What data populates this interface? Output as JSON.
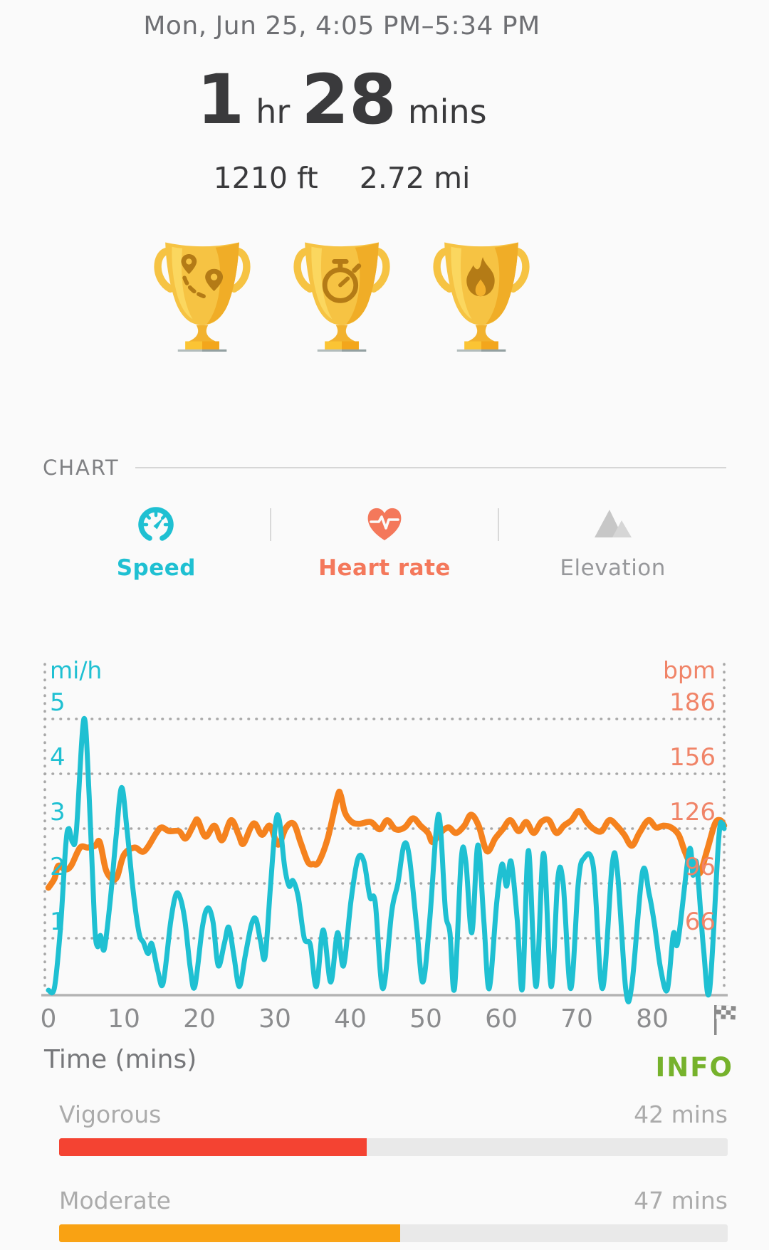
{
  "header": {
    "datetime": "Mon, Jun 25, 4:05 PM–5:34 PM"
  },
  "summary": {
    "duration_hours": "1",
    "hours_unit": "hr",
    "duration_minutes": "28",
    "minutes_unit": "mins",
    "elevation": "1210 ft",
    "distance": "2.72 mi"
  },
  "achievements": [
    {
      "name": "route-distance-trophy",
      "icon": "map-pins-route"
    },
    {
      "name": "duration-trophy",
      "icon": "stopwatch"
    },
    {
      "name": "calories-trophy",
      "icon": "flame"
    }
  ],
  "chart_section": {
    "title": "CHART",
    "tabs": [
      {
        "label": "Speed",
        "icon": "speedometer-icon",
        "active": true,
        "color": "#1fc0d2"
      },
      {
        "label": "Heart rate",
        "icon": "heart-ecg-icon",
        "active": true,
        "color": "#f4785b"
      },
      {
        "label": "Elevation",
        "icon": "mountain-icon",
        "active": false,
        "color": "#97989b"
      }
    ]
  },
  "chart_data": {
    "type": "line",
    "xlabel": "Time (mins)",
    "x_ticks": [
      0,
      10,
      20,
      30,
      40,
      50,
      60,
      70,
      80
    ],
    "xlim": [
      0,
      89.8
    ],
    "end_marker": "finish-flag",
    "grid": "dotted horizontal gridlines + dotted left/right borders",
    "legend_position": "none",
    "left_axis": {
      "label": "mi/h",
      "color": "#1fc0d2",
      "ticks": [
        5,
        4,
        3,
        2,
        1
      ],
      "range": [
        0,
        5.8
      ]
    },
    "right_axis": {
      "label": "bpm",
      "color": "#f08468",
      "ticks": [
        186,
        156,
        126,
        96,
        66
      ],
      "range": [
        36,
        210
      ]
    },
    "series": [
      {
        "name": "Heart rate",
        "unit": "bpm",
        "axis": "right",
        "color": "#f5821e",
        "points": [
          [
            0,
            94
          ],
          [
            0.8,
            99
          ],
          [
            1.3,
            106
          ],
          [
            2.2,
            104
          ],
          [
            3,
            106
          ],
          [
            4.2,
            116
          ],
          [
            5.2,
            116
          ],
          [
            6.2,
            117
          ],
          [
            6.8,
            119
          ],
          [
            7.6,
            104
          ],
          [
            8.4,
            99
          ],
          [
            9.1,
            100
          ],
          [
            10,
            112
          ],
          [
            11.4,
            116
          ],
          [
            12.7,
            114
          ],
          [
            14.3,
            124
          ],
          [
            15,
            127
          ],
          [
            16,
            125
          ],
          [
            17.3,
            125
          ],
          [
            18.2,
            121
          ],
          [
            19.3,
            129
          ],
          [
            19.8,
            131
          ],
          [
            20.8,
            122
          ],
          [
            22,
            128
          ],
          [
            23,
            120
          ],
          [
            24.2,
            131
          ],
          [
            25.2,
            123
          ],
          [
            25.8,
            118
          ],
          [
            26.8,
            127
          ],
          [
            27.4,
            129
          ],
          [
            28.3,
            123
          ],
          [
            29.3,
            128
          ],
          [
            30.1,
            120
          ],
          [
            30.6,
            118
          ],
          [
            31.5,
            127
          ],
          [
            32.5,
            129
          ],
          [
            33.4,
            119
          ],
          [
            34.4,
            108
          ],
          [
            35.1,
            107
          ],
          [
            35.8,
            108
          ],
          [
            37,
            121
          ],
          [
            38.3,
            144
          ],
          [
            38.7,
            145
          ],
          [
            39.3,
            135
          ],
          [
            40.2,
            130
          ],
          [
            41.2,
            129
          ],
          [
            42.7,
            130
          ],
          [
            43.9,
            126
          ],
          [
            44.9,
            131
          ],
          [
            46,
            126
          ],
          [
            47.2,
            127
          ],
          [
            48.3,
            132
          ],
          [
            49.3,
            128
          ],
          [
            50.3,
            124
          ],
          [
            50.9,
            119
          ],
          [
            51.9,
            124
          ],
          [
            53,
            127
          ],
          [
            54,
            124
          ],
          [
            55.1,
            128
          ],
          [
            56,
            134
          ],
          [
            57,
            128
          ],
          [
            58.1,
            114
          ],
          [
            59.2,
            121
          ],
          [
            60.2,
            126
          ],
          [
            61.2,
            131
          ],
          [
            62.3,
            125
          ],
          [
            63.3,
            130
          ],
          [
            64.3,
            124
          ],
          [
            65.3,
            130
          ],
          [
            66.3,
            131
          ],
          [
            67.3,
            124
          ],
          [
            68.3,
            128
          ],
          [
            69.3,
            131
          ],
          [
            70.3,
            136
          ],
          [
            71.3,
            130
          ],
          [
            72.3,
            126
          ],
          [
            73.3,
            125
          ],
          [
            74.3,
            131
          ],
          [
            75.3,
            128
          ],
          [
            76.3,
            123
          ],
          [
            77.3,
            117
          ],
          [
            78.3,
            124
          ],
          [
            79.5,
            131
          ],
          [
            80.5,
            127
          ],
          [
            81.5,
            128
          ],
          [
            82.5,
            127
          ],
          [
            83.5,
            123
          ],
          [
            84.3,
            114
          ],
          [
            85.3,
            105
          ],
          [
            86.3,
            102
          ],
          [
            87.3,
            115
          ],
          [
            88.3,
            129
          ],
          [
            89,
            131
          ],
          [
            89.8,
            128
          ]
        ]
      },
      {
        "name": "Speed",
        "unit": "mi/h",
        "axis": "left",
        "color": "#1fc0d2",
        "points": [
          [
            0,
            0.05
          ],
          [
            0.8,
            0.1
          ],
          [
            1.6,
            1.2
          ],
          [
            2.3,
            2.7
          ],
          [
            2.7,
            3.0
          ],
          [
            3.2,
            2.75
          ],
          [
            3.7,
            2.95
          ],
          [
            4.7,
            5.0
          ],
          [
            5.4,
            3.6
          ],
          [
            6.1,
            1.3
          ],
          [
            6.5,
            0.85
          ],
          [
            6.9,
            1.05
          ],
          [
            7.4,
            0.8
          ],
          [
            8.2,
            1.7
          ],
          [
            9,
            2.9
          ],
          [
            9.7,
            3.75
          ],
          [
            10.4,
            3.0
          ],
          [
            11.2,
            1.9
          ],
          [
            12,
            1.1
          ],
          [
            12.6,
            0.92
          ],
          [
            13.2,
            0.72
          ],
          [
            13.7,
            0.9
          ],
          [
            14.5,
            0.4
          ],
          [
            15.2,
            0.18
          ],
          [
            16.2,
            1.3
          ],
          [
            16.9,
            1.8
          ],
          [
            17.5,
            1.72
          ],
          [
            18.1,
            1.3
          ],
          [
            18.8,
            0.45
          ],
          [
            19.4,
            0.12
          ],
          [
            20.4,
            1.2
          ],
          [
            21.1,
            1.55
          ],
          [
            21.8,
            1.3
          ],
          [
            22.5,
            0.5
          ],
          [
            23.3,
            0.9
          ],
          [
            23.9,
            1.2
          ],
          [
            24.6,
            0.65
          ],
          [
            25.3,
            0.12
          ],
          [
            26.1,
            0.7
          ],
          [
            26.9,
            1.25
          ],
          [
            27.5,
            1.35
          ],
          [
            28.1,
            0.95
          ],
          [
            28.7,
            0.65
          ],
          [
            29.4,
            1.9
          ],
          [
            30.1,
            3.1
          ],
          [
            30.6,
            3.15
          ],
          [
            31.3,
            2.3
          ],
          [
            31.9,
            1.95
          ],
          [
            32.4,
            2.05
          ],
          [
            33.1,
            1.75
          ],
          [
            33.9,
            1.0
          ],
          [
            34.7,
            0.88
          ],
          [
            35.5,
            0.12
          ],
          [
            36.4,
            1.15
          ],
          [
            37.4,
            0.2
          ],
          [
            38.3,
            1.1
          ],
          [
            39.1,
            0.5
          ],
          [
            40.1,
            1.7
          ],
          [
            41,
            2.45
          ],
          [
            41.8,
            2.4
          ],
          [
            42.6,
            1.75
          ],
          [
            43.3,
            1.65
          ],
          [
            44.3,
            0.08
          ],
          [
            45.5,
            1.5
          ],
          [
            46.3,
            2.0
          ],
          [
            47.1,
            2.7
          ],
          [
            47.8,
            2.5
          ],
          [
            48.8,
            1.2
          ],
          [
            49.6,
            0.2
          ],
          [
            50.5,
            1.3
          ],
          [
            51.4,
            3.0
          ],
          [
            51.9,
            3.1
          ],
          [
            52.6,
            1.5
          ],
          [
            53.2,
            1.1
          ],
          [
            53.8,
            0.08
          ],
          [
            54.7,
            2.45
          ],
          [
            55.3,
            2.4
          ],
          [
            56.1,
            1.1
          ],
          [
            56.9,
            2.7
          ],
          [
            57.7,
            1.3
          ],
          [
            58.4,
            0.08
          ],
          [
            59.4,
            1.65
          ],
          [
            60.1,
            2.35
          ],
          [
            60.7,
            1.95
          ],
          [
            61.3,
            2.4
          ],
          [
            62.1,
            1.35
          ],
          [
            62.8,
            0.08
          ],
          [
            63.6,
            2.6
          ],
          [
            64.6,
            0.12
          ],
          [
            65.6,
            2.55
          ],
          [
            66.6,
            0.12
          ],
          [
            67.5,
            2.1
          ],
          [
            68.2,
            2.0
          ],
          [
            69.2,
            0.08
          ],
          [
            70.2,
            2.0
          ],
          [
            70.9,
            2.45
          ],
          [
            72.2,
            2.3
          ],
          [
            73.4,
            0.08
          ],
          [
            74.7,
            2.35
          ],
          [
            75.4,
            2.2
          ],
          [
            76.5,
            0.06
          ],
          [
            77.3,
            0.15
          ],
          [
            78.7,
            2.2
          ],
          [
            79.6,
            1.8
          ],
          [
            80.3,
            1.25
          ],
          [
            81.1,
            0.45
          ],
          [
            82,
            0.06
          ],
          [
            82.8,
            1.08
          ],
          [
            83.4,
            0.93
          ],
          [
            84.9,
            2.6
          ],
          [
            85.4,
            2.15
          ],
          [
            85.9,
            2.35
          ],
          [
            86.8,
            0.8
          ],
          [
            87.6,
            0.05
          ],
          [
            88.8,
            2.8
          ],
          [
            89.3,
            3.08
          ],
          [
            89.8,
            3.0
          ]
        ]
      }
    ]
  },
  "below_chart": {
    "x_axis_title": "Time (mins)",
    "info_label": "INFO"
  },
  "activity_bars": [
    {
      "label": "Vigorous",
      "value": "42 mins",
      "percent": 46,
      "color": "#f44332"
    },
    {
      "label": "Moderate",
      "value": "47 mins",
      "percent": 51,
      "color": "#f9a213"
    }
  ],
  "colors": {
    "background": "#fafafa",
    "speed_accent": "#1fc0d2",
    "heart_rate_accent": "#f4785b",
    "heart_rate_line": "#f5821e",
    "vigorous_red": "#f44332",
    "moderate_amber": "#f9a213",
    "info_green": "#76b22c"
  }
}
